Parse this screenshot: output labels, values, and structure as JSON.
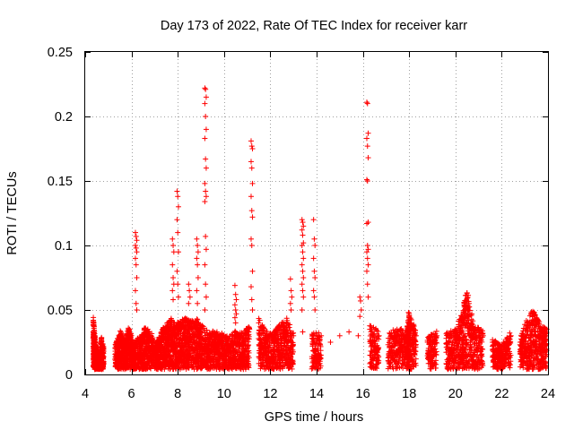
{
  "chart_data": {
    "type": "scatter",
    "title": "Day 173 of 2022, Rate Of TEC Index for receiver karr",
    "xlabel": "GPS time / hours",
    "ylabel": "ROTI / TECUs",
    "xlim": [
      4,
      24
    ],
    "ylim": [
      0,
      0.25
    ],
    "xticks": [
      "4",
      "6",
      "8",
      "10",
      "12",
      "14",
      "16",
      "18",
      "20",
      "22",
      "24"
    ],
    "yticks": [
      "0",
      "0.05",
      "0.1",
      "0.15",
      "0.2",
      "0.25"
    ],
    "grid": true,
    "marker": "+",
    "color": "#ff0000",
    "series": [
      {
        "name": "ROTI",
        "baseline_points": [
          [
            4.35,
            0.042
          ],
          [
            4.4,
            0.03
          ],
          [
            4.45,
            0.02
          ],
          [
            4.5,
            0.012
          ],
          [
            4.6,
            0.008
          ],
          [
            4.7,
            0.025
          ],
          [
            4.8,
            0.018
          ],
          [
            5.3,
            0.02
          ],
          [
            5.5,
            0.03
          ],
          [
            5.7,
            0.025
          ],
          [
            5.9,
            0.034
          ],
          [
            6.1,
            0.02
          ],
          [
            6.4,
            0.028
          ],
          [
            6.6,
            0.033
          ],
          [
            6.8,
            0.03
          ],
          [
            7.1,
            0.02
          ],
          [
            7.3,
            0.03
          ],
          [
            7.5,
            0.036
          ],
          [
            7.7,
            0.04
          ],
          [
            7.9,
            0.035
          ],
          [
            8.1,
            0.038
          ],
          [
            8.3,
            0.04
          ],
          [
            8.5,
            0.038
          ],
          [
            8.8,
            0.04
          ],
          [
            9.0,
            0.035
          ],
          [
            9.3,
            0.03
          ],
          [
            9.6,
            0.03
          ],
          [
            9.9,
            0.028
          ],
          [
            10.2,
            0.025
          ],
          [
            10.5,
            0.03
          ],
          [
            10.8,
            0.028
          ],
          [
            11.1,
            0.035
          ],
          [
            11.5,
            0.04
          ],
          [
            11.8,
            0.03
          ],
          [
            12.1,
            0.028
          ],
          [
            12.4,
            0.035
          ],
          [
            12.7,
            0.04
          ],
          [
            13.0,
            0.03
          ],
          [
            13.4,
            0.033
          ],
          [
            13.8,
            0.028
          ],
          [
            14.2,
            0.03
          ],
          [
            14.6,
            0.025
          ],
          [
            15.0,
            0.03
          ],
          [
            15.4,
            0.033
          ],
          [
            15.8,
            0.03
          ],
          [
            16.3,
            0.035
          ],
          [
            16.7,
            0.03
          ],
          [
            17.1,
            0.028
          ],
          [
            17.5,
            0.033
          ],
          [
            17.9,
            0.03
          ],
          [
            18.0,
            0.045
          ],
          [
            18.3,
            0.03
          ],
          [
            18.8,
            0.025
          ],
          [
            19.2,
            0.03
          ],
          [
            19.6,
            0.028
          ],
          [
            20.0,
            0.032
          ],
          [
            20.3,
            0.045
          ],
          [
            20.5,
            0.063
          ],
          [
            20.8,
            0.035
          ],
          [
            21.2,
            0.03
          ],
          [
            21.6,
            0.025
          ],
          [
            22.0,
            0.02
          ],
          [
            22.4,
            0.03
          ],
          [
            22.8,
            0.025
          ],
          [
            23.1,
            0.04
          ],
          [
            23.4,
            0.048
          ],
          [
            23.7,
            0.033
          ],
          [
            23.95,
            0.035
          ]
        ],
        "spikes": [
          {
            "x": 6.2,
            "points": [
              0.11,
              0.107,
              0.104,
              0.1,
              0.098,
              0.095,
              0.09,
              0.085,
              0.075,
              0.065,
              0.055,
              0.05
            ]
          },
          {
            "x": 7.8,
            "points": [
              0.105,
              0.1,
              0.095,
              0.085,
              0.075,
              0.07,
              0.065,
              0.058
            ]
          },
          {
            "x": 8.0,
            "points": [
              0.142,
              0.138,
              0.13,
              0.12,
              0.11,
              0.095,
              0.08,
              0.07,
              0.06
            ]
          },
          {
            "x": 8.5,
            "points": [
              0.07,
              0.065,
              0.06,
              0.055
            ]
          },
          {
            "x": 8.85,
            "points": [
              0.105,
              0.1,
              0.095,
              0.09,
              0.085,
              0.075,
              0.065,
              0.055
            ]
          },
          {
            "x": 9.2,
            "points": [
              0.222,
              0.221,
              0.215,
              0.21,
              0.2,
              0.19,
              0.183,
              0.167,
              0.16,
              0.148,
              0.142,
              0.138,
              0.134,
              0.107,
              0.097,
              0.085,
              0.07,
              0.06,
              0.05
            ]
          },
          {
            "x": 10.5,
            "points": [
              0.069,
              0.062,
              0.058,
              0.054,
              0.05,
              0.047,
              0.044,
              0.04
            ]
          },
          {
            "x": 11.2,
            "points": [
              0.181,
              0.177,
              0.175,
              0.165,
              0.16,
              0.148,
              0.138,
              0.127,
              0.122,
              0.105,
              0.1,
              0.08,
              0.068,
              0.058,
              0.05
            ]
          },
          {
            "x": 12.9,
            "points": [
              0.074,
              0.065,
              0.06,
              0.055,
              0.05
            ]
          },
          {
            "x": 13.4,
            "points": [
              0.12,
              0.118,
              0.115,
              0.112,
              0.108,
              0.102,
              0.1,
              0.095,
              0.09,
              0.085,
              0.08,
              0.075,
              0.07,
              0.065,
              0.06,
              0.05
            ]
          },
          {
            "x": 13.9,
            "points": [
              0.12,
              0.105,
              0.1,
              0.09,
              0.08,
              0.075,
              0.065,
              0.06,
              0.05
            ]
          },
          {
            "x": 16.2,
            "points": [
              0.211,
              0.21,
              0.187,
              0.183,
              0.177,
              0.168,
              0.151,
              0.15,
              0.118,
              0.117,
              0.1,
              0.097,
              0.095,
              0.09,
              0.085,
              0.08,
              0.07,
              0.06
            ]
          },
          {
            "x": 15.9,
            "points": [
              0.06,
              0.057,
              0.05,
              0.045
            ]
          },
          {
            "x": 18.0,
            "points": [
              0.048,
              0.045,
              0.04
            ]
          }
        ]
      }
    ]
  }
}
